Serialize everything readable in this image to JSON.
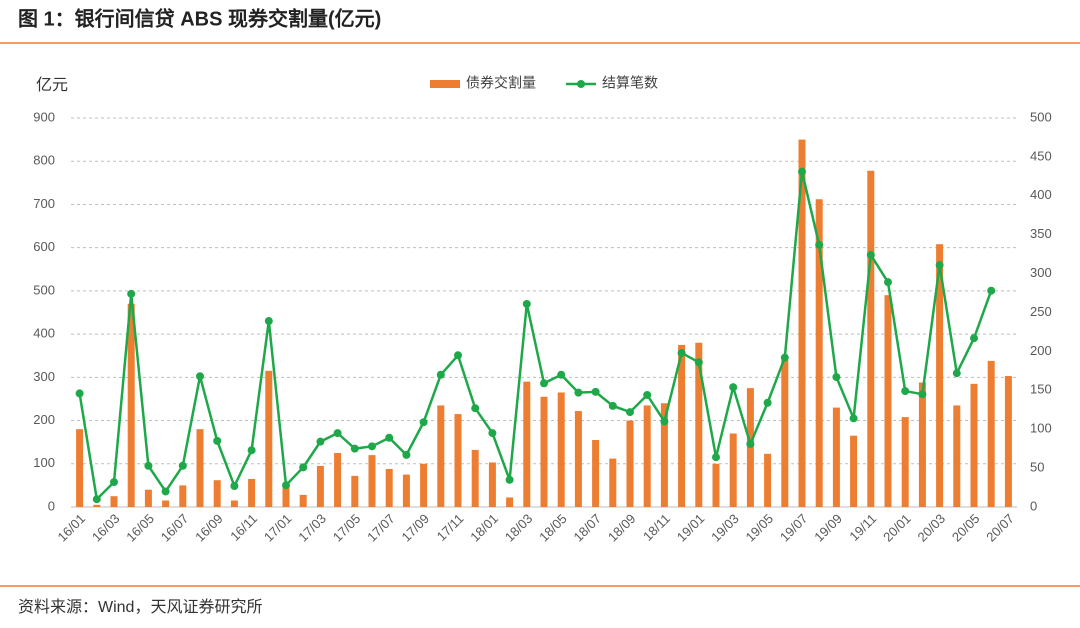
{
  "chart_data": {
    "type": "bar_line",
    "title": "图 1：银行间信贷 ABS 现券交割量(亿元)",
    "y_label": "亿元",
    "source": "资料来源：Wind，天风证券研究所",
    "categories": [
      "16/01",
      null,
      "16/03",
      null,
      "16/05",
      null,
      "16/07",
      null,
      "16/09",
      null,
      "16/11",
      null,
      "17/01",
      null,
      "17/03",
      null,
      "17/05",
      null,
      "17/07",
      null,
      "17/09",
      null,
      "17/11",
      null,
      "18/01",
      null,
      "18/03",
      null,
      "18/05",
      null,
      "18/07",
      null,
      "18/09",
      null,
      "18/11",
      null,
      "19/01",
      null,
      "19/03",
      null,
      "19/05",
      null,
      "19/07",
      null,
      "19/09",
      null,
      "19/11",
      null,
      "20/01",
      null,
      "20/03",
      null,
      "20/05",
      null,
      "20/07"
    ],
    "series": [
      {
        "name": "债券交割量",
        "color": "#ed7d31",
        "type": "bar",
        "axis": "y",
        "values": [
          180,
          5,
          25,
          470,
          40,
          15,
          50,
          180,
          62,
          15,
          65,
          315,
          45,
          28,
          95,
          125,
          72,
          120,
          88,
          75,
          100,
          235,
          215,
          132,
          103,
          22,
          290,
          255,
          265,
          222,
          155,
          112,
          200,
          235,
          240,
          375,
          380,
          100,
          170,
          275,
          123,
          340,
          850,
          712,
          230,
          165,
          778,
          490,
          208,
          288,
          608,
          235,
          285,
          338,
          303
        ]
      },
      {
        "name": "结算笔数",
        "color": "#1fa84a",
        "type": "line",
        "axis": "y2",
        "values": [
          146,
          10,
          32,
          274,
          53,
          20,
          53,
          168,
          85,
          27,
          73,
          239,
          28,
          51,
          84,
          95,
          75,
          78,
          89,
          67,
          109,
          170,
          195,
          127,
          95,
          35,
          261,
          159,
          170,
          147,
          148,
          130,
          122,
          144,
          110,
          198,
          186,
          64,
          154,
          81,
          134,
          192,
          431,
          337,
          167,
          114,
          324,
          289,
          149,
          145,
          311,
          172,
          217,
          278,
          null
        ]
      }
    ],
    "ylim": [
      0,
      900
    ],
    "yticks": [
      0,
      100,
      200,
      300,
      400,
      500,
      600,
      700,
      800,
      900
    ],
    "y2lim": [
      0,
      500
    ],
    "y2ticks": [
      0,
      50,
      100,
      150,
      200,
      250,
      300,
      350,
      400,
      450,
      500
    ],
    "grid": true,
    "legend": "top"
  }
}
